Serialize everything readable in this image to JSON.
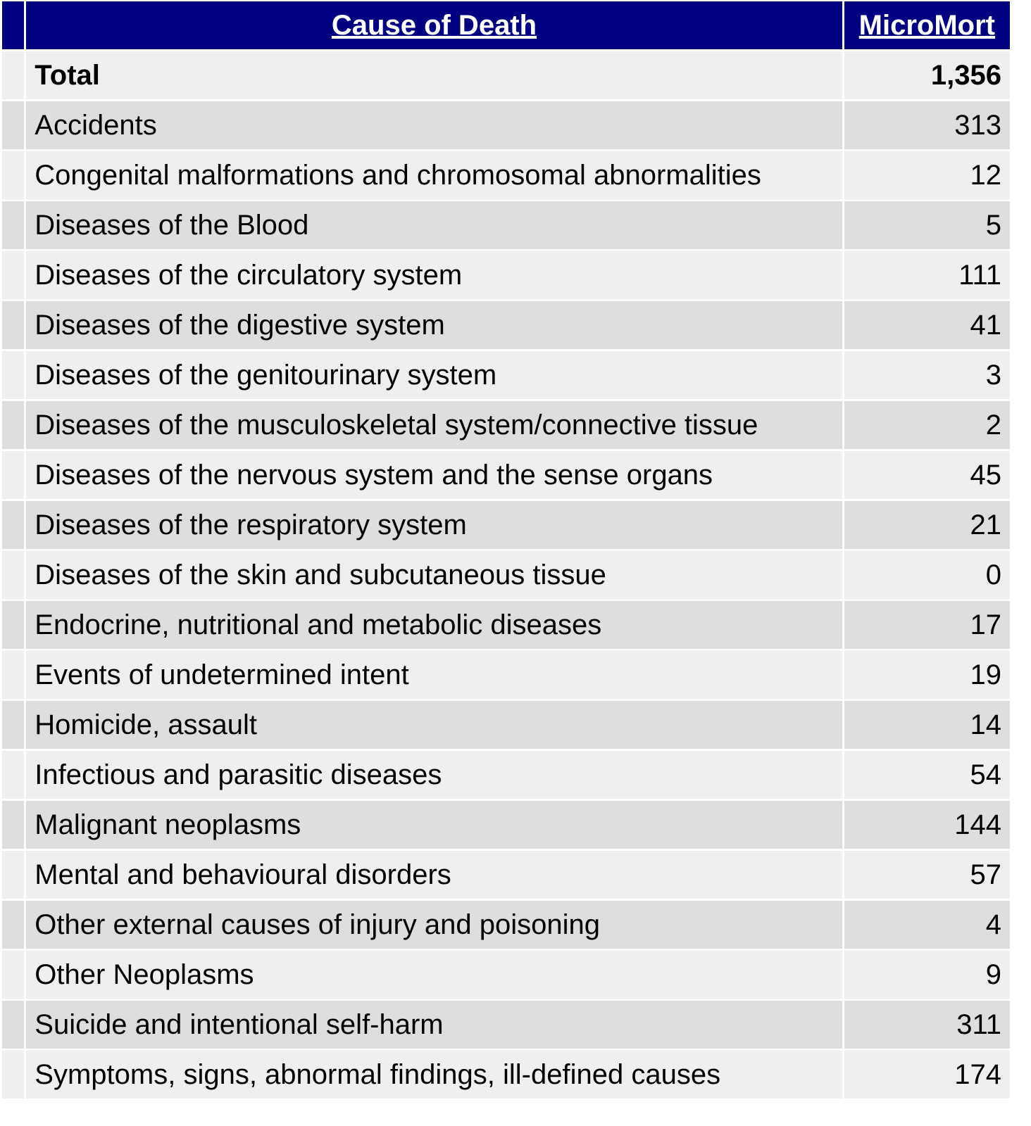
{
  "table": {
    "headers": {
      "cause": "Cause of Death",
      "micromort": "MicroMort"
    },
    "total": {
      "label": "Total",
      "value": "1,356"
    },
    "rows": [
      {
        "cause": "Accidents",
        "value": "313"
      },
      {
        "cause": "Congenital malformations and chromosomal abnormalities",
        "value": "12"
      },
      {
        "cause": "Diseases of the Blood",
        "value": "5"
      },
      {
        "cause": "Diseases of the circulatory system",
        "value": "111"
      },
      {
        "cause": "Diseases of the digestive system",
        "value": "41"
      },
      {
        "cause": "Diseases of the genitourinary system",
        "value": "3"
      },
      {
        "cause": "Diseases of the musculoskeletal system/connective tissue",
        "value": "2"
      },
      {
        "cause": "Diseases of the nervous system and the sense organs",
        "value": "45"
      },
      {
        "cause": "Diseases of the respiratory system",
        "value": "21"
      },
      {
        "cause": "Diseases of the skin and subcutaneous tissue",
        "value": "0"
      },
      {
        "cause": "Endocrine, nutritional and metabolic diseases",
        "value": "17"
      },
      {
        "cause": "Events of undetermined intent",
        "value": "19"
      },
      {
        "cause": "Homicide, assault",
        "value": "14"
      },
      {
        "cause": "Infectious and parasitic diseases",
        "value": "54"
      },
      {
        "cause": "Malignant neoplasms",
        "value": "144"
      },
      {
        "cause": "Mental and behavioural disorders",
        "value": "57"
      },
      {
        "cause": "Other external causes of injury and poisoning",
        "value": "4"
      },
      {
        "cause": "Other Neoplasms",
        "value": "9"
      },
      {
        "cause": "Suicide and intentional self-harm",
        "value": "311"
      },
      {
        "cause": "Symptoms, signs, abnormal findings, ill-defined causes",
        "value": "174"
      }
    ]
  },
  "colors": {
    "header_bg": "#000080",
    "header_text": "#ffffff",
    "row_light": "#efefef",
    "row_dark": "#dedede"
  }
}
